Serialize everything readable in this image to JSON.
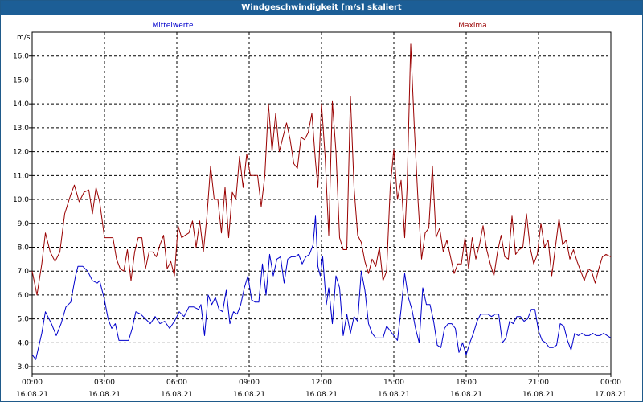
{
  "window": {
    "title": "Windgeschwindigkeit [m/s] skaliert"
  },
  "chart_data": {
    "type": "line",
    "title": "Windgeschwindigkeit [m/s] skaliert",
    "y_unit": "m/s",
    "ylim": [
      2.7,
      17.0
    ],
    "y_ticks": [
      "3.0",
      "4.0",
      "5.0",
      "6.0",
      "7.0",
      "8.0",
      "9.0",
      "10.0",
      "11.0",
      "12.0",
      "13.0",
      "14.0",
      "15.0",
      "16.0"
    ],
    "x_ticks": [
      {
        "time": "00:00",
        "date": "16.08.21"
      },
      {
        "time": "03:00",
        "date": "16.08.21"
      },
      {
        "time": "06:00",
        "date": "16.08.21"
      },
      {
        "time": "09:00",
        "date": "16.08.21"
      },
      {
        "time": "12:00",
        "date": "16.08.21"
      },
      {
        "time": "15:00",
        "date": "16.08.21"
      },
      {
        "time": "18:00",
        "date": "16.08.21"
      },
      {
        "time": "21:00",
        "date": "16.08.21"
      },
      {
        "time": "00:00",
        "date": "17.08.21"
      }
    ],
    "grid": true,
    "x_hours_range": [
      0,
      24
    ],
    "series": [
      {
        "name": "Mittelwerte",
        "color": "#0000cc",
        "points": [
          [
            0.0,
            3.5
          ],
          [
            0.15,
            3.3
          ],
          [
            0.4,
            4.4
          ],
          [
            0.55,
            5.3
          ],
          [
            0.8,
            4.8
          ],
          [
            1.0,
            4.3
          ],
          [
            1.2,
            4.8
          ],
          [
            1.4,
            5.5
          ],
          [
            1.6,
            5.7
          ],
          [
            1.8,
            6.8
          ],
          [
            1.9,
            7.2
          ],
          [
            2.1,
            7.2
          ],
          [
            2.3,
            7.0
          ],
          [
            2.5,
            6.6
          ],
          [
            2.7,
            6.5
          ],
          [
            2.8,
            6.6
          ],
          [
            3.0,
            5.8
          ],
          [
            3.15,
            5.0
          ],
          [
            3.3,
            4.6
          ],
          [
            3.45,
            4.8
          ],
          [
            3.6,
            4.1
          ],
          [
            3.8,
            4.1
          ],
          [
            4.0,
            4.1
          ],
          [
            4.15,
            4.6
          ],
          [
            4.3,
            5.3
          ],
          [
            4.5,
            5.2
          ],
          [
            4.7,
            5.0
          ],
          [
            4.9,
            4.8
          ],
          [
            5.1,
            5.1
          ],
          [
            5.3,
            4.8
          ],
          [
            5.5,
            4.9
          ],
          [
            5.7,
            4.6
          ],
          [
            5.9,
            4.9
          ],
          [
            6.1,
            5.3
          ],
          [
            6.3,
            5.1
          ],
          [
            6.5,
            5.5
          ],
          [
            6.7,
            5.5
          ],
          [
            6.9,
            5.4
          ],
          [
            7.0,
            5.6
          ],
          [
            7.15,
            4.3
          ],
          [
            7.3,
            6.0
          ],
          [
            7.45,
            5.6
          ],
          [
            7.6,
            5.9
          ],
          [
            7.75,
            5.4
          ],
          [
            7.9,
            5.3
          ],
          [
            8.05,
            6.2
          ],
          [
            8.2,
            4.8
          ],
          [
            8.35,
            5.3
          ],
          [
            8.5,
            5.2
          ],
          [
            8.65,
            5.6
          ],
          [
            8.8,
            6.3
          ],
          [
            8.95,
            6.8
          ],
          [
            9.1,
            5.8
          ],
          [
            9.25,
            5.7
          ],
          [
            9.4,
            5.7
          ],
          [
            9.55,
            7.3
          ],
          [
            9.7,
            6.0
          ],
          [
            9.85,
            7.7
          ],
          [
            10.0,
            6.8
          ],
          [
            10.15,
            7.5
          ],
          [
            10.3,
            7.6
          ],
          [
            10.45,
            6.5
          ],
          [
            10.6,
            7.5
          ],
          [
            10.75,
            7.6
          ],
          [
            10.9,
            7.6
          ],
          [
            11.05,
            7.7
          ],
          [
            11.2,
            7.3
          ],
          [
            11.35,
            7.6
          ],
          [
            11.5,
            7.7
          ],
          [
            11.65,
            8.1
          ],
          [
            11.75,
            9.3
          ],
          [
            11.85,
            7.2
          ],
          [
            11.95,
            6.8
          ],
          [
            12.05,
            7.6
          ],
          [
            12.2,
            5.6
          ],
          [
            12.3,
            6.3
          ],
          [
            12.45,
            4.8
          ],
          [
            12.6,
            6.8
          ],
          [
            12.75,
            6.3
          ],
          [
            12.9,
            4.3
          ],
          [
            13.05,
            5.2
          ],
          [
            13.2,
            4.4
          ],
          [
            13.35,
            5.1
          ],
          [
            13.5,
            4.9
          ],
          [
            13.65,
            7.0
          ],
          [
            13.8,
            6.2
          ],
          [
            13.95,
            4.8
          ],
          [
            14.1,
            4.4
          ],
          [
            14.25,
            4.2
          ],
          [
            14.4,
            4.2
          ],
          [
            14.55,
            4.2
          ],
          [
            14.7,
            4.7
          ],
          [
            14.85,
            4.5
          ],
          [
            15.0,
            4.3
          ],
          [
            15.15,
            4.1
          ],
          [
            15.3,
            5.4
          ],
          [
            15.45,
            6.9
          ],
          [
            15.6,
            5.9
          ],
          [
            15.75,
            5.4
          ],
          [
            15.9,
            4.6
          ],
          [
            16.05,
            4.0
          ],
          [
            16.2,
            6.3
          ],
          [
            16.35,
            5.6
          ],
          [
            16.5,
            5.6
          ],
          [
            16.65,
            4.9
          ],
          [
            16.8,
            3.9
          ],
          [
            16.95,
            3.8
          ],
          [
            17.1,
            4.6
          ],
          [
            17.25,
            4.8
          ],
          [
            17.4,
            4.8
          ],
          [
            17.55,
            4.6
          ],
          [
            17.7,
            3.6
          ],
          [
            17.85,
            4.0
          ],
          [
            18.0,
            3.5
          ],
          [
            18.15,
            4.0
          ],
          [
            18.3,
            4.4
          ],
          [
            18.45,
            4.9
          ],
          [
            18.6,
            5.2
          ],
          [
            18.75,
            5.2
          ],
          [
            18.9,
            5.2
          ],
          [
            19.05,
            5.1
          ],
          [
            19.2,
            5.2
          ],
          [
            19.35,
            5.2
          ],
          [
            19.5,
            4.0
          ],
          [
            19.65,
            4.2
          ],
          [
            19.8,
            4.9
          ],
          [
            19.95,
            4.8
          ],
          [
            20.1,
            5.1
          ],
          [
            20.25,
            5.1
          ],
          [
            20.4,
            4.9
          ],
          [
            20.55,
            5.0
          ],
          [
            20.7,
            5.4
          ],
          [
            20.85,
            5.4
          ],
          [
            21.0,
            4.5
          ],
          [
            21.15,
            4.1
          ],
          [
            21.3,
            4.0
          ],
          [
            21.45,
            3.8
          ],
          [
            21.6,
            3.8
          ],
          [
            21.75,
            3.9
          ],
          [
            21.9,
            4.8
          ],
          [
            22.05,
            4.7
          ],
          [
            22.2,
            4.1
          ],
          [
            22.35,
            3.7
          ],
          [
            22.5,
            4.4
          ],
          [
            22.65,
            4.3
          ],
          [
            22.8,
            4.4
          ],
          [
            22.95,
            4.3
          ],
          [
            23.1,
            4.3
          ],
          [
            23.25,
            4.4
          ],
          [
            23.4,
            4.3
          ],
          [
            23.55,
            4.3
          ],
          [
            23.7,
            4.4
          ],
          [
            23.85,
            4.3
          ],
          [
            24.0,
            4.2
          ]
        ]
      },
      {
        "name": "Maxima",
        "color": "#990000",
        "points": [
          [
            0.0,
            7.0
          ],
          [
            0.2,
            6.0
          ],
          [
            0.4,
            7.3
          ],
          [
            0.55,
            8.6
          ],
          [
            0.75,
            7.8
          ],
          [
            0.95,
            7.4
          ],
          [
            1.15,
            7.8
          ],
          [
            1.35,
            9.4
          ],
          [
            1.6,
            10.2
          ],
          [
            1.75,
            10.6
          ],
          [
            1.95,
            9.9
          ],
          [
            2.15,
            10.3
          ],
          [
            2.35,
            10.4
          ],
          [
            2.5,
            9.4
          ],
          [
            2.65,
            10.5
          ],
          [
            2.8,
            9.9
          ],
          [
            3.0,
            8.4
          ],
          [
            3.2,
            8.4
          ],
          [
            3.35,
            8.4
          ],
          [
            3.5,
            7.5
          ],
          [
            3.65,
            7.1
          ],
          [
            3.8,
            7.0
          ],
          [
            3.95,
            7.9
          ],
          [
            4.1,
            6.6
          ],
          [
            4.25,
            7.8
          ],
          [
            4.4,
            8.4
          ],
          [
            4.55,
            8.4
          ],
          [
            4.7,
            7.1
          ],
          [
            4.85,
            7.8
          ],
          [
            5.0,
            7.8
          ],
          [
            5.15,
            7.6
          ],
          [
            5.3,
            8.1
          ],
          [
            5.45,
            8.5
          ],
          [
            5.6,
            7.1
          ],
          [
            5.75,
            7.4
          ],
          [
            5.9,
            6.8
          ],
          [
            6.05,
            8.9
          ],
          [
            6.2,
            8.4
          ],
          [
            6.35,
            8.5
          ],
          [
            6.5,
            8.6
          ],
          [
            6.65,
            9.1
          ],
          [
            6.8,
            8.0
          ],
          [
            6.95,
            9.1
          ],
          [
            7.1,
            7.8
          ],
          [
            7.25,
            9.3
          ],
          [
            7.4,
            11.4
          ],
          [
            7.55,
            10.0
          ],
          [
            7.7,
            10.0
          ],
          [
            7.85,
            8.6
          ],
          [
            8.0,
            10.5
          ],
          [
            8.15,
            8.4
          ],
          [
            8.3,
            10.3
          ],
          [
            8.45,
            10.0
          ],
          [
            8.6,
            11.8
          ],
          [
            8.75,
            10.5
          ],
          [
            8.9,
            11.9
          ],
          [
            9.05,
            11.0
          ],
          [
            9.2,
            11.0
          ],
          [
            9.35,
            11.0
          ],
          [
            9.5,
            9.7
          ],
          [
            9.65,
            11.0
          ],
          [
            9.8,
            14.0
          ],
          [
            9.95,
            12.0
          ],
          [
            10.1,
            13.6
          ],
          [
            10.25,
            12.0
          ],
          [
            10.4,
            12.6
          ],
          [
            10.55,
            13.2
          ],
          [
            10.7,
            12.5
          ],
          [
            10.85,
            11.5
          ],
          [
            11.0,
            11.3
          ],
          [
            11.15,
            12.6
          ],
          [
            11.3,
            12.5
          ],
          [
            11.45,
            12.8
          ],
          [
            11.6,
            13.6
          ],
          [
            11.75,
            11.6
          ],
          [
            11.85,
            10.5
          ],
          [
            12.0,
            14.0
          ],
          [
            12.15,
            11.8
          ],
          [
            12.3,
            8.5
          ],
          [
            12.45,
            14.1
          ],
          [
            12.6,
            12.0
          ],
          [
            12.75,
            8.4
          ],
          [
            12.9,
            7.9
          ],
          [
            13.05,
            7.9
          ],
          [
            13.2,
            14.3
          ],
          [
            13.35,
            10.5
          ],
          [
            13.5,
            8.5
          ],
          [
            13.65,
            8.2
          ],
          [
            13.8,
            7.4
          ],
          [
            13.95,
            6.9
          ],
          [
            14.1,
            7.5
          ],
          [
            14.25,
            7.2
          ],
          [
            14.4,
            8.0
          ],
          [
            14.55,
            6.6
          ],
          [
            14.7,
            7.0
          ],
          [
            14.85,
            10.5
          ],
          [
            15.0,
            12.1
          ],
          [
            15.15,
            10.0
          ],
          [
            15.3,
            10.8
          ],
          [
            15.45,
            8.4
          ],
          [
            15.55,
            10.5
          ],
          [
            15.7,
            16.5
          ],
          [
            15.85,
            13.0
          ],
          [
            16.0,
            10.0
          ],
          [
            16.15,
            7.5
          ],
          [
            16.3,
            8.6
          ],
          [
            16.45,
            8.8
          ],
          [
            16.6,
            11.4
          ],
          [
            16.75,
            8.4
          ],
          [
            16.9,
            8.8
          ],
          [
            17.05,
            7.8
          ],
          [
            17.2,
            8.3
          ],
          [
            17.35,
            7.6
          ],
          [
            17.5,
            6.9
          ],
          [
            17.65,
            7.3
          ],
          [
            17.8,
            7.3
          ],
          [
            17.95,
            8.4
          ],
          [
            18.1,
            7.1
          ],
          [
            18.25,
            8.4
          ],
          [
            18.4,
            7.5
          ],
          [
            18.55,
            8.1
          ],
          [
            18.7,
            8.9
          ],
          [
            18.85,
            7.9
          ],
          [
            19.0,
            7.3
          ],
          [
            19.15,
            6.8
          ],
          [
            19.3,
            7.8
          ],
          [
            19.45,
            8.5
          ],
          [
            19.6,
            7.6
          ],
          [
            19.75,
            7.5
          ],
          [
            19.9,
            9.3
          ],
          [
            20.05,
            7.7
          ],
          [
            20.2,
            7.9
          ],
          [
            20.35,
            8.0
          ],
          [
            20.5,
            9.4
          ],
          [
            20.65,
            8.0
          ],
          [
            20.8,
            7.3
          ],
          [
            20.95,
            7.7
          ],
          [
            21.1,
            9.0
          ],
          [
            21.25,
            8.0
          ],
          [
            21.4,
            8.3
          ],
          [
            21.55,
            6.8
          ],
          [
            21.7,
            8.0
          ],
          [
            21.85,
            9.2
          ],
          [
            22.0,
            8.1
          ],
          [
            22.15,
            8.3
          ],
          [
            22.3,
            7.5
          ],
          [
            22.45,
            7.9
          ],
          [
            22.6,
            7.4
          ],
          [
            22.75,
            7.0
          ],
          [
            22.9,
            6.6
          ],
          [
            23.05,
            7.1
          ],
          [
            23.2,
            7.0
          ],
          [
            23.35,
            6.5
          ],
          [
            23.5,
            7.1
          ],
          [
            23.65,
            7.6
          ],
          [
            23.8,
            7.7
          ],
          [
            24.0,
            7.6
          ]
        ]
      }
    ]
  }
}
